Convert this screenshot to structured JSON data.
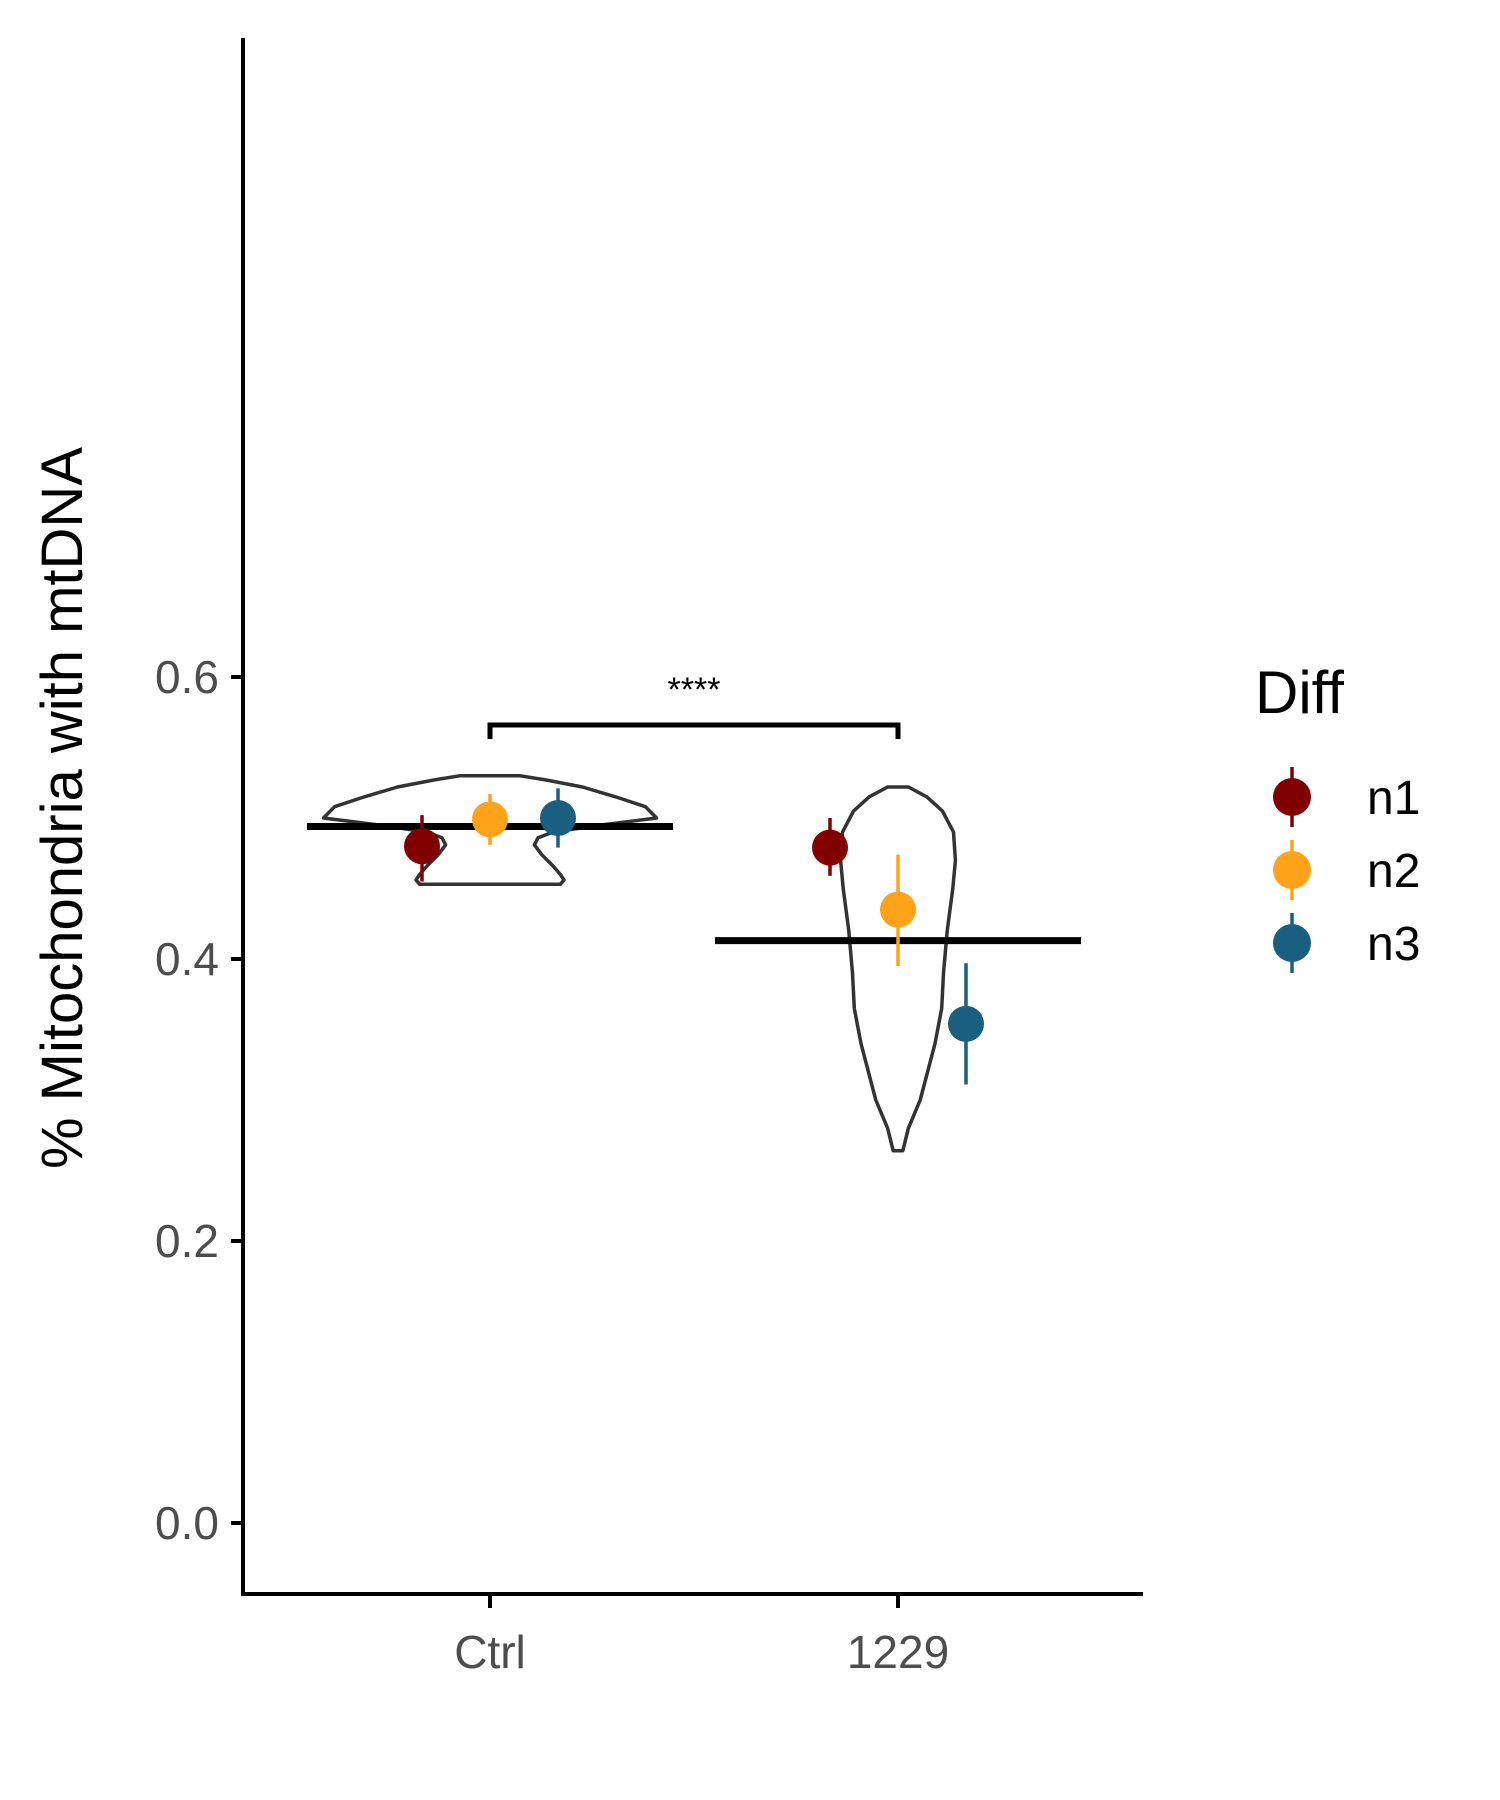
{
  "chart_data": {
    "type": "scatter",
    "subtype": "violin-with-pointrange",
    "title": "",
    "xlabel": "",
    "ylabel": "% Mitochondria with mtDNA",
    "categories": [
      "Ctrl",
      "1229"
    ],
    "ylim": [
      -0.03,
      0.63
    ],
    "yticks": [
      0.0,
      0.2,
      0.4,
      0.6
    ],
    "ytick_labels": [
      "0.0",
      "0.2",
      "0.4",
      "0.6"
    ],
    "grid": false,
    "legend": {
      "title": "Diff",
      "position": "right"
    },
    "series": [
      {
        "name": "n1",
        "color": "#800000",
        "points": [
          {
            "category": "Ctrl",
            "y": 0.48,
            "ymin": 0.455,
            "ymax": 0.502
          },
          {
            "category": "1229",
            "y": 0.479,
            "ymin": 0.459,
            "ymax": 0.5
          }
        ]
      },
      {
        "name": "n2",
        "color": "#FFA31A",
        "points": [
          {
            "category": "Ctrl",
            "y": 0.499,
            "ymin": 0.481,
            "ymax": 0.517
          },
          {
            "category": "1229",
            "y": 0.435,
            "ymin": 0.395,
            "ymax": 0.474
          }
        ]
      },
      {
        "name": "n3",
        "color": "#1A5E80",
        "points": [
          {
            "category": "Ctrl",
            "y": 0.5,
            "ymin": 0.479,
            "ymax": 0.521
          },
          {
            "category": "1229",
            "y": 0.354,
            "ymin": 0.311,
            "ymax": 0.397
          }
        ]
      }
    ],
    "means": [
      {
        "category": "Ctrl",
        "y": 0.494
      },
      {
        "category": "1229",
        "y": 0.413
      }
    ],
    "violins": [
      {
        "category": "Ctrl",
        "ymin": 0.453,
        "ymax": 0.53,
        "profile": [
          [
            0.453,
            0.19
          ],
          [
            0.456,
            0.2
          ],
          [
            0.46,
            0.19
          ],
          [
            0.466,
            0.17
          ],
          [
            0.474,
            0.14
          ],
          [
            0.481,
            0.12
          ],
          [
            0.486,
            0.13
          ],
          [
            0.49,
            0.17
          ],
          [
            0.495,
            0.3
          ],
          [
            0.5,
            0.45
          ],
          [
            0.508,
            0.42
          ],
          [
            0.515,
            0.34
          ],
          [
            0.522,
            0.25
          ],
          [
            0.527,
            0.15
          ],
          [
            0.53,
            0.08
          ]
        ]
      },
      {
        "category": "1229",
        "ymin": 0.264,
        "ymax": 0.522,
        "profile": [
          [
            0.264,
            0.013
          ],
          [
            0.28,
            0.028
          ],
          [
            0.3,
            0.06
          ],
          [
            0.32,
            0.08
          ],
          [
            0.34,
            0.1
          ],
          [
            0.365,
            0.118
          ],
          [
            0.39,
            0.123
          ],
          [
            0.42,
            0.133
          ],
          [
            0.45,
            0.148
          ],
          [
            0.47,
            0.155
          ],
          [
            0.49,
            0.15
          ],
          [
            0.505,
            0.12
          ],
          [
            0.515,
            0.078
          ],
          [
            0.522,
            0.028
          ]
        ]
      }
    ],
    "significance": {
      "label": "****",
      "from": "Ctrl",
      "to": "1229",
      "y": 0.566,
      "tip": 0.556
    }
  }
}
